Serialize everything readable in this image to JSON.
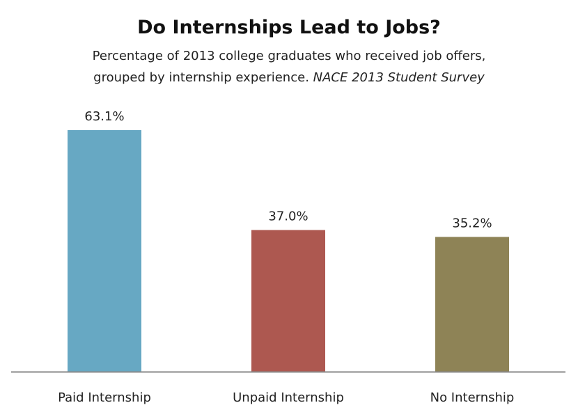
{
  "chart_data": {
    "type": "bar",
    "title": "Do Internships Lead to Jobs?",
    "subtitle_line1": "Percentage of 2013 college graduates who received job offers,",
    "subtitle_line2": "grouped by internship experience.",
    "source": "NACE 2013 Student Survey",
    "categories": [
      "Paid Internship",
      "Unpaid Internship",
      "No Internship"
    ],
    "values": [
      63.1,
      37.0,
      35.2
    ],
    "data_labels": [
      "63.1%",
      "37.0%",
      "35.2%"
    ],
    "colors": [
      "#67a8c3",
      "#ad5850",
      "#8e8356"
    ],
    "ylim": [
      0,
      63.1
    ],
    "grid": false,
    "legend": "none"
  }
}
